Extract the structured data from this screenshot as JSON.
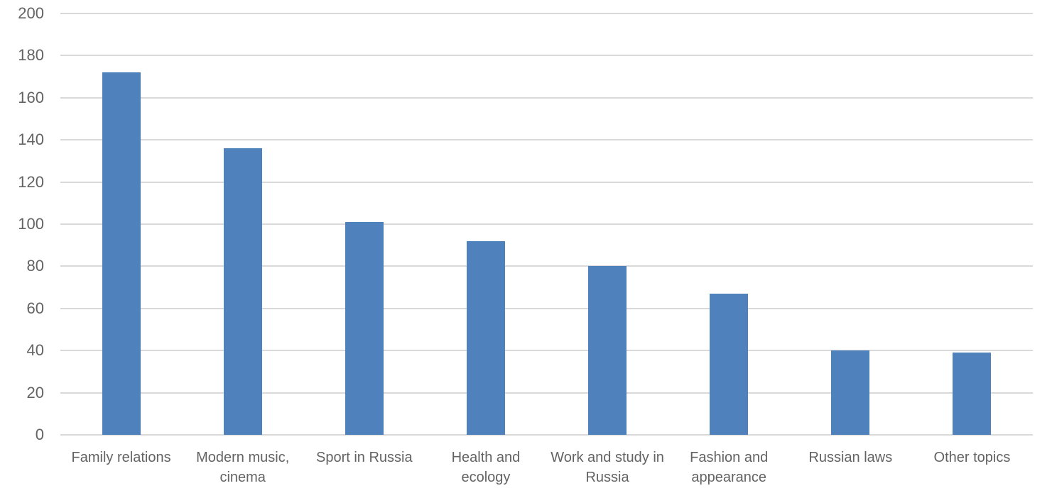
{
  "chart_data": {
    "type": "bar",
    "title": "",
    "xlabel": "",
    "ylabel": "",
    "categories": [
      "Family relations",
      "Modern music, cinema",
      "Sport in Russia",
      "Health and ecology",
      "Work and study in Russia",
      "Fashion and appearance",
      "Russian laws",
      "Other topics"
    ],
    "category_label_lines": [
      [
        "Family relations"
      ],
      [
        "Modern music,",
        "cinema"
      ],
      [
        "Sport in Russia"
      ],
      [
        "Health and",
        "ecology"
      ],
      [
        "Work and study in",
        "Russia"
      ],
      [
        "Fashion and",
        "appearance"
      ],
      [
        "Russian laws"
      ],
      [
        "Other topics"
      ]
    ],
    "values": [
      172,
      136,
      101,
      92,
      80,
      67,
      40,
      39
    ],
    "ylim": [
      0,
      200
    ],
    "yticks": [
      0,
      20,
      40,
      60,
      80,
      100,
      120,
      140,
      160,
      180,
      200
    ],
    "grid": "horizontal",
    "legend_position": "none",
    "bar_color": "#4F81BD",
    "gridline_color": "#D9D9D9",
    "axis_text_color": "#636363"
  }
}
